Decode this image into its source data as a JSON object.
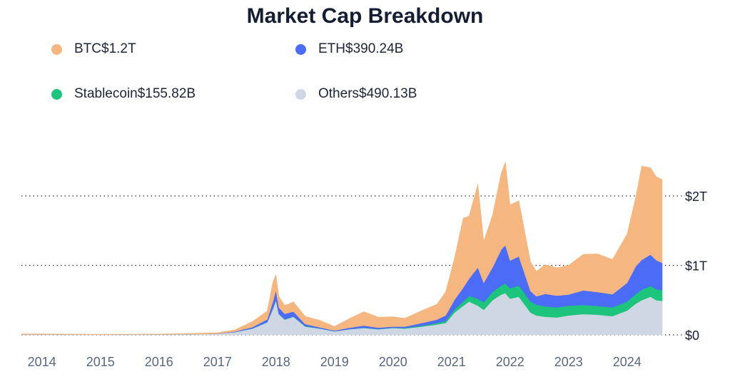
{
  "chart_data": {
    "type": "area",
    "stacked": true,
    "title": "Market Cap Breakdown",
    "xlabel": "",
    "ylabel": "",
    "x_ticks": [
      "2014",
      "2015",
      "2016",
      "2017",
      "2018",
      "2019",
      "2020",
      "2021",
      "2022",
      "2023",
      "2024"
    ],
    "y_ticks": [
      "$0",
      "$1T",
      "$2T"
    ],
    "y_tick_values": [
      0,
      1,
      2
    ],
    "ylim": [
      0,
      2.85
    ],
    "xlim": [
      2013.65,
      2024.6
    ],
    "grid": true,
    "legend": [
      {
        "name": "BTC",
        "value": "$1.2T",
        "color": "#f5b77f"
      },
      {
        "name": "ETH",
        "value": "$390.24B",
        "color": "#4a6cf7"
      },
      {
        "name": "Stablecoin",
        "value": "$155.82B",
        "color": "#1dc47c"
      },
      {
        "name": "Others",
        "value": "$490.13B",
        "color": "#cfd6e4"
      }
    ],
    "x": [
      2013.65,
      2014.0,
      2015.0,
      2016.0,
      2017.0,
      2017.3,
      2017.6,
      2017.85,
      2017.95,
      2018.0,
      2018.05,
      2018.15,
      2018.3,
      2018.5,
      2018.75,
      2019.0,
      2019.25,
      2019.5,
      2019.75,
      2020.0,
      2020.2,
      2020.5,
      2020.75,
      2020.9,
      2021.05,
      2021.2,
      2021.3,
      2021.45,
      2021.55,
      2021.7,
      2021.85,
      2021.92,
      2022.0,
      2022.15,
      2022.35,
      2022.45,
      2022.6,
      2022.8,
      2023.0,
      2023.25,
      2023.5,
      2023.75,
      2024.0,
      2024.15,
      2024.25,
      2024.4,
      2024.5,
      2024.6
    ],
    "series": [
      {
        "name": "Others",
        "color": "#cfd6e4",
        "values": [
          0.005,
          0.005,
          0.004,
          0.006,
          0.015,
          0.04,
          0.09,
          0.18,
          0.38,
          0.5,
          0.3,
          0.22,
          0.26,
          0.12,
          0.09,
          0.05,
          0.08,
          0.1,
          0.08,
          0.1,
          0.09,
          0.12,
          0.15,
          0.17,
          0.32,
          0.42,
          0.48,
          0.42,
          0.36,
          0.5,
          0.58,
          0.6,
          0.52,
          0.55,
          0.32,
          0.28,
          0.26,
          0.25,
          0.28,
          0.3,
          0.29,
          0.27,
          0.35,
          0.45,
          0.5,
          0.55,
          0.5,
          0.49
        ]
      },
      {
        "name": "Stablecoin",
        "color": "#1dc47c",
        "values": [
          0.0,
          0.0,
          0.0,
          0.0,
          0.0,
          0.0,
          0.002,
          0.003,
          0.004,
          0.004,
          0.004,
          0.004,
          0.005,
          0.006,
          0.003,
          0.002,
          0.002,
          0.003,
          0.004,
          0.005,
          0.008,
          0.012,
          0.02,
          0.03,
          0.045,
          0.06,
          0.08,
          0.1,
          0.11,
          0.12,
          0.13,
          0.14,
          0.15,
          0.16,
          0.16,
          0.155,
          0.15,
          0.145,
          0.14,
          0.13,
          0.125,
          0.125,
          0.13,
          0.14,
          0.15,
          0.155,
          0.155,
          0.156
        ]
      },
      {
        "name": "ETH",
        "color": "#4a6cf7",
        "values": [
          0.0,
          0.0,
          0.0,
          0.0,
          0.001,
          0.008,
          0.02,
          0.04,
          0.1,
          0.14,
          0.09,
          0.08,
          0.07,
          0.03,
          0.015,
          0.01,
          0.02,
          0.03,
          0.02,
          0.015,
          0.02,
          0.04,
          0.05,
          0.08,
          0.14,
          0.2,
          0.25,
          0.45,
          0.28,
          0.35,
          0.52,
          0.55,
          0.4,
          0.42,
          0.15,
          0.12,
          0.18,
          0.17,
          0.16,
          0.21,
          0.2,
          0.19,
          0.27,
          0.4,
          0.43,
          0.45,
          0.42,
          0.39
        ]
      },
      {
        "name": "BTC",
        "color": "#f5b77f",
        "values": [
          0.008,
          0.008,
          0.004,
          0.005,
          0.016,
          0.025,
          0.08,
          0.12,
          0.28,
          0.22,
          0.16,
          0.12,
          0.14,
          0.11,
          0.1,
          0.06,
          0.13,
          0.2,
          0.15,
          0.14,
          0.12,
          0.18,
          0.22,
          0.34,
          0.6,
          1.0,
          0.9,
          1.2,
          0.6,
          0.75,
          1.1,
          1.2,
          0.8,
          0.8,
          0.42,
          0.36,
          0.42,
          0.4,
          0.42,
          0.52,
          0.55,
          0.5,
          0.7,
          1.0,
          1.35,
          1.25,
          1.2,
          1.2
        ]
      }
    ]
  }
}
